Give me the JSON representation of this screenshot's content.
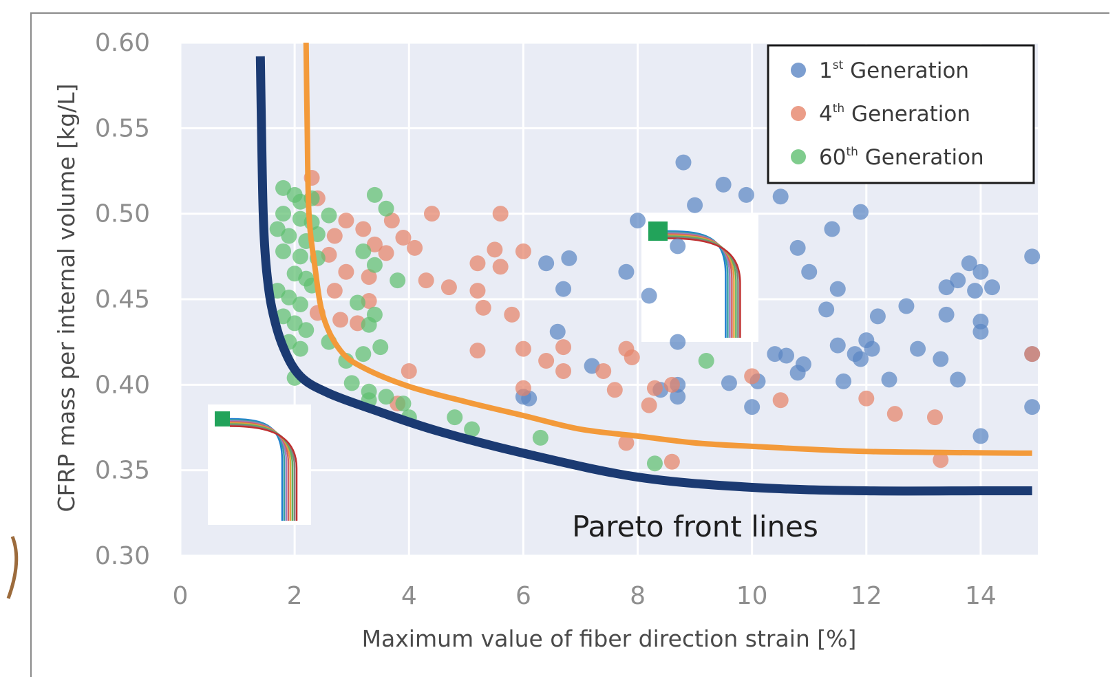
{
  "chart_data": {
    "type": "scatter",
    "xlabel": "Maximum value of fiber direction strain [%]",
    "ylabel": "CFRP mass per internal volume [kg/L]",
    "xlim": [
      0,
      15
    ],
    "ylim": [
      0.3,
      0.6
    ],
    "xticks": [
      "0",
      "2",
      "4",
      "6",
      "8",
      "10",
      "12",
      "14"
    ],
    "yticks": [
      "0.30",
      "0.35",
      "0.40",
      "0.45",
      "0.50",
      "0.55",
      "0.60"
    ],
    "grid": true,
    "legend_placement": "top-right",
    "annotation": "Pareto front lines",
    "colors": {
      "gen1": "#5b86c4",
      "gen4": "#e6846a",
      "gen60": "#5fbf70",
      "pareto_dark": "#1b3a72",
      "pareto_orange": "#f39a3a",
      "background": "#e9ecf5"
    },
    "series": [
      {
        "name": "1st Generation",
        "legend_base": "1",
        "legend_sup": "st",
        "legend_rest": " Generation",
        "color": "#5b86c4",
        "points": [
          [
            8.8,
            0.53
          ],
          [
            9.5,
            0.517
          ],
          [
            9.9,
            0.511
          ],
          [
            10.5,
            0.51
          ],
          [
            9.0,
            0.505
          ],
          [
            11.9,
            0.501
          ],
          [
            8.0,
            0.496
          ],
          [
            11.4,
            0.491
          ],
          [
            8.7,
            0.481
          ],
          [
            10.8,
            0.48
          ],
          [
            14.9,
            0.475
          ],
          [
            6.8,
            0.474
          ],
          [
            6.4,
            0.471
          ],
          [
            13.8,
            0.471
          ],
          [
            14.0,
            0.466
          ],
          [
            11.0,
            0.466
          ],
          [
            7.8,
            0.466
          ],
          [
            13.6,
            0.461
          ],
          [
            13.4,
            0.457
          ],
          [
            14.2,
            0.457
          ],
          [
            11.5,
            0.456
          ],
          [
            6.7,
            0.456
          ],
          [
            13.9,
            0.455
          ],
          [
            8.2,
            0.452
          ],
          [
            12.7,
            0.446
          ],
          [
            11.3,
            0.444
          ],
          [
            13.4,
            0.441
          ],
          [
            12.2,
            0.44
          ],
          [
            14.0,
            0.437
          ],
          [
            14.0,
            0.431
          ],
          [
            6.6,
            0.431
          ],
          [
            11.5,
            0.423
          ],
          [
            8.7,
            0.425
          ],
          [
            12.0,
            0.426
          ],
          [
            12.1,
            0.421
          ],
          [
            12.9,
            0.421
          ],
          [
            11.8,
            0.418
          ],
          [
            10.4,
            0.418
          ],
          [
            10.6,
            0.417
          ],
          [
            11.9,
            0.415
          ],
          [
            13.3,
            0.415
          ],
          [
            10.9,
            0.412
          ],
          [
            7.2,
            0.411
          ],
          [
            10.8,
            0.407
          ],
          [
            13.6,
            0.403
          ],
          [
            12.4,
            0.403
          ],
          [
            11.6,
            0.402
          ],
          [
            10.1,
            0.402
          ],
          [
            9.6,
            0.401
          ],
          [
            8.7,
            0.4
          ],
          [
            14.9,
            0.418
          ],
          [
            6.1,
            0.392
          ],
          [
            8.7,
            0.393
          ],
          [
            10.0,
            0.387
          ],
          [
            14.9,
            0.387
          ],
          [
            14.0,
            0.37
          ],
          [
            6.0,
            0.393
          ],
          [
            8.4,
            0.397
          ]
        ]
      },
      {
        "name": "4th Generation",
        "legend_base": "4",
        "legend_sup": "th",
        "legend_rest": " Generation",
        "color": "#e6846a",
        "points": [
          [
            2.3,
            0.521
          ],
          [
            2.4,
            0.509
          ],
          [
            2.9,
            0.496
          ],
          [
            3.2,
            0.491
          ],
          [
            3.7,
            0.496
          ],
          [
            4.4,
            0.5
          ],
          [
            5.6,
            0.5
          ],
          [
            2.7,
            0.487
          ],
          [
            3.4,
            0.482
          ],
          [
            3.9,
            0.486
          ],
          [
            4.1,
            0.48
          ],
          [
            2.6,
            0.476
          ],
          [
            3.6,
            0.477
          ],
          [
            5.5,
            0.479
          ],
          [
            6.0,
            0.478
          ],
          [
            5.2,
            0.471
          ],
          [
            5.6,
            0.469
          ],
          [
            2.9,
            0.466
          ],
          [
            3.3,
            0.463
          ],
          [
            4.3,
            0.461
          ],
          [
            4.7,
            0.457
          ],
          [
            5.2,
            0.455
          ],
          [
            2.7,
            0.455
          ],
          [
            3.3,
            0.449
          ],
          [
            5.3,
            0.445
          ],
          [
            5.8,
            0.441
          ],
          [
            2.4,
            0.442
          ],
          [
            2.8,
            0.438
          ],
          [
            3.1,
            0.436
          ],
          [
            5.2,
            0.42
          ],
          [
            6.0,
            0.421
          ],
          [
            6.7,
            0.422
          ],
          [
            7.8,
            0.421
          ],
          [
            7.9,
            0.416
          ],
          [
            6.4,
            0.414
          ],
          [
            4.0,
            0.408
          ],
          [
            6.7,
            0.408
          ],
          [
            7.4,
            0.408
          ],
          [
            10.0,
            0.405
          ],
          [
            8.3,
            0.398
          ],
          [
            8.6,
            0.4
          ],
          [
            7.6,
            0.397
          ],
          [
            6.0,
            0.398
          ],
          [
            8.2,
            0.388
          ],
          [
            12.5,
            0.383
          ],
          [
            13.2,
            0.381
          ],
          [
            8.6,
            0.355
          ],
          [
            13.3,
            0.356
          ],
          [
            7.8,
            0.366
          ],
          [
            3.8,
            0.389
          ],
          [
            10.5,
            0.391
          ],
          [
            12.0,
            0.392
          ],
          [
            14.9,
            0.418
          ]
        ]
      },
      {
        "name": "60th Generation",
        "legend_base": "60",
        "legend_sup": "th",
        "legend_rest": " Generation",
        "color": "#5fbf70",
        "points": [
          [
            1.8,
            0.515
          ],
          [
            2.0,
            0.511
          ],
          [
            2.1,
            0.507
          ],
          [
            2.3,
            0.509
          ],
          [
            1.8,
            0.5
          ],
          [
            2.1,
            0.497
          ],
          [
            2.3,
            0.495
          ],
          [
            2.6,
            0.499
          ],
          [
            1.7,
            0.491
          ],
          [
            1.9,
            0.487
          ],
          [
            2.2,
            0.484
          ],
          [
            2.4,
            0.488
          ],
          [
            1.8,
            0.478
          ],
          [
            2.1,
            0.475
          ],
          [
            2.4,
            0.474
          ],
          [
            2.0,
            0.465
          ],
          [
            2.2,
            0.462
          ],
          [
            2.3,
            0.458
          ],
          [
            1.7,
            0.455
          ],
          [
            1.9,
            0.451
          ],
          [
            2.1,
            0.447
          ],
          [
            1.8,
            0.44
          ],
          [
            2.0,
            0.436
          ],
          [
            2.2,
            0.432
          ],
          [
            1.9,
            0.425
          ],
          [
            2.1,
            0.421
          ],
          [
            3.4,
            0.511
          ],
          [
            3.6,
            0.503
          ],
          [
            3.2,
            0.478
          ],
          [
            3.4,
            0.47
          ],
          [
            3.8,
            0.461
          ],
          [
            3.1,
            0.448
          ],
          [
            3.4,
            0.441
          ],
          [
            3.3,
            0.435
          ],
          [
            3.5,
            0.422
          ],
          [
            3.2,
            0.418
          ],
          [
            2.6,
            0.425
          ],
          [
            2.9,
            0.414
          ],
          [
            3.0,
            0.401
          ],
          [
            3.3,
            0.396
          ],
          [
            3.6,
            0.393
          ],
          [
            3.3,
            0.391
          ],
          [
            3.9,
            0.389
          ],
          [
            4.0,
            0.381
          ],
          [
            4.8,
            0.381
          ],
          [
            5.1,
            0.374
          ],
          [
            6.3,
            0.369
          ],
          [
            9.2,
            0.414
          ],
          [
            8.3,
            0.354
          ],
          [
            2.0,
            0.404
          ]
        ]
      }
    ],
    "pareto_lines": [
      {
        "color": "#1b3a72",
        "points": [
          [
            1.4,
            0.592
          ],
          [
            1.42,
            0.55
          ],
          [
            1.45,
            0.5
          ],
          [
            1.5,
            0.47
          ],
          [
            1.6,
            0.445
          ],
          [
            1.8,
            0.422
          ],
          [
            2.1,
            0.405
          ],
          [
            2.6,
            0.395
          ],
          [
            3.5,
            0.384
          ],
          [
            4.5,
            0.373
          ],
          [
            6.0,
            0.36
          ],
          [
            8.0,
            0.346
          ],
          [
            10.0,
            0.34
          ],
          [
            12.0,
            0.338
          ],
          [
            14.0,
            0.338
          ],
          [
            14.9,
            0.338
          ]
        ]
      },
      {
        "color": "#f39a3a",
        "points": [
          [
            2.2,
            0.6
          ],
          [
            2.22,
            0.55
          ],
          [
            2.25,
            0.5
          ],
          [
            2.35,
            0.47
          ],
          [
            2.5,
            0.44
          ],
          [
            2.8,
            0.42
          ],
          [
            3.2,
            0.41
          ],
          [
            4.0,
            0.399
          ],
          [
            5.0,
            0.39
          ],
          [
            6.0,
            0.382
          ],
          [
            7.0,
            0.374
          ],
          [
            8.0,
            0.37
          ],
          [
            9.0,
            0.366
          ],
          [
            10.0,
            0.364
          ],
          [
            12.0,
            0.361
          ],
          [
            14.9,
            0.36
          ]
        ]
      }
    ]
  }
}
